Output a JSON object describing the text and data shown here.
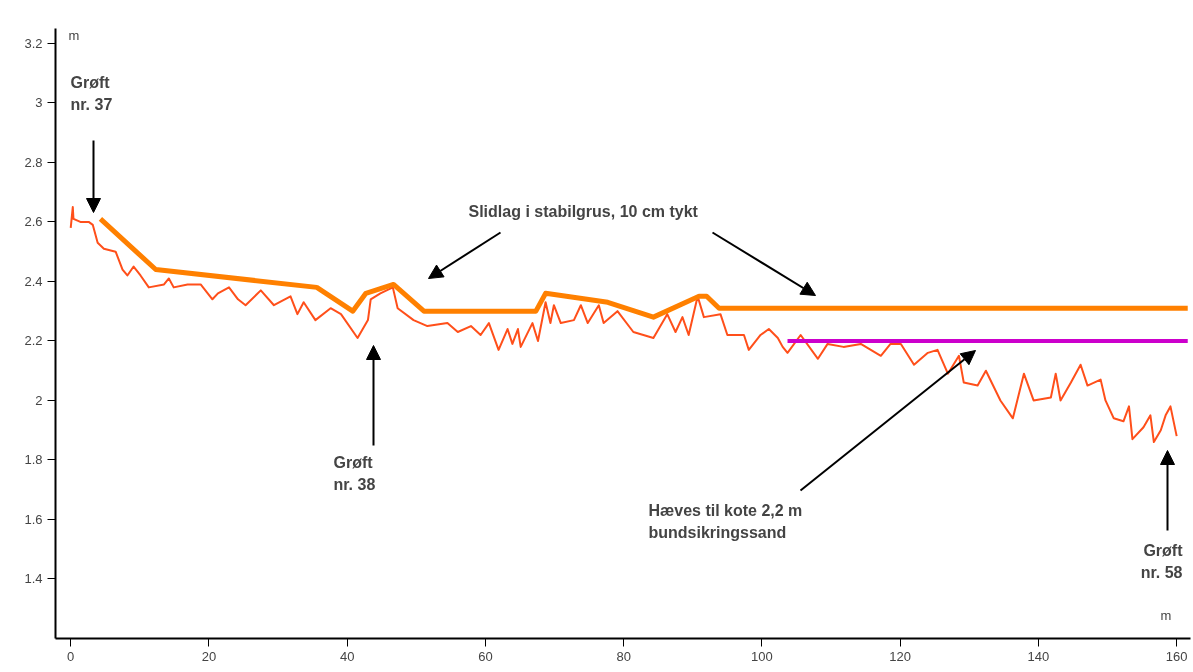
{
  "chart_data": {
    "type": "line",
    "xlabel": "m",
    "ylabel": "m",
    "xlim": [
      -2.2,
      162
    ],
    "ylim": [
      1.2,
      3.25
    ],
    "xticks": [
      0,
      20,
      40,
      60,
      80,
      100,
      120,
      140,
      160
    ],
    "yticks": [
      1.4,
      1.6,
      1.8,
      2,
      2.2,
      2.4,
      2.6,
      2.8,
      3,
      3.2
    ],
    "grid": false,
    "line_style": "solid",
    "series": [
      {
        "color": "#ff4f1a",
        "x": [
          0,
          0.3,
          0.4,
          1.4,
          2.6,
          3.2,
          3.9,
          4.8,
          6.5,
          7.5,
          8.2,
          9.1,
          10.1,
          11.3,
          13.5,
          14.2,
          14.9,
          16.9,
          18.8,
          20.5,
          21.3,
          22.9,
          24.2,
          25.3,
          27.5,
          29.4,
          31.8,
          32.8,
          33.7,
          35.4,
          37.6,
          39.1,
          41.5,
          43.0,
          43.4,
          44.8,
          46.6,
          47.3,
          49.6,
          51.6,
          54.5,
          56.0,
          57.9,
          59.3,
          60.5,
          61.9,
          63.2,
          63.9,
          64.7,
          65.1,
          66.8,
          67.6,
          68.7,
          69.4,
          69.9,
          70.9,
          72.8,
          73.8,
          74.8,
          76.4,
          77.1,
          79.1,
          81.4,
          84.3,
          86.3,
          87.5,
          88.5,
          89.4,
          90.7,
          91.6,
          94.0,
          95.0,
          97.4,
          98.1,
          99.8,
          101.0,
          102.3,
          103.0,
          103.7,
          105.6,
          108.1,
          109.5,
          111.8,
          114.3,
          117.2,
          118.6,
          120.1,
          122.0,
          124.0,
          125.4,
          126.9,
          128.5,
          129.2,
          131.2,
          132.4,
          134.5,
          136.3,
          137.9,
          139.3,
          141.8,
          142.5,
          143.2,
          144.7,
          146.1,
          147.1,
          149.0,
          149.7,
          150.9,
          152.3,
          153.1,
          153.6,
          155.2,
          156.2,
          156.7,
          157.7,
          158.4,
          159.1,
          160.0
        ],
        "values": [
          2.58,
          2.65,
          2.61,
          2.6,
          2.6,
          2.59,
          2.53,
          2.51,
          2.5,
          2.44,
          2.42,
          2.45,
          2.42,
          2.38,
          2.39,
          2.41,
          2.38,
          2.39,
          2.39,
          2.34,
          2.36,
          2.38,
          2.34,
          2.32,
          2.37,
          2.32,
          2.35,
          2.29,
          2.33,
          2.27,
          2.31,
          2.29,
          2.21,
          2.27,
          2.34,
          2.36,
          2.38,
          2.31,
          2.27,
          2.25,
          2.26,
          2.23,
          2.25,
          2.22,
          2.26,
          2.17,
          2.24,
          2.19,
          2.24,
          2.18,
          2.26,
          2.2,
          2.33,
          2.26,
          2.32,
          2.26,
          2.27,
          2.32,
          2.26,
          2.32,
          2.26,
          2.3,
          2.23,
          2.21,
          2.29,
          2.23,
          2.28,
          2.22,
          2.35,
          2.28,
          2.29,
          2.22,
          2.22,
          2.17,
          2.22,
          2.24,
          2.21,
          2.18,
          2.16,
          2.22,
          2.14,
          2.19,
          2.18,
          2.19,
          2.15,
          2.19,
          2.19,
          2.12,
          2.16,
          2.17,
          2.09,
          2.15,
          2.06,
          2.05,
          2.1,
          2.0,
          1.94,
          2.09,
          2.0,
          2.01,
          2.09,
          2.0,
          2.06,
          2.12,
          2.05,
          2.07,
          2.0,
          1.94,
          1.93,
          1.98,
          1.87,
          1.91,
          1.95,
          1.86,
          1.9,
          1.95,
          1.98,
          1.88
        ]
      },
      {
        "color": "#ff8000",
        "x": [
          4.3,
          12.3,
          35.6,
          40.8,
          42.7,
          46.7,
          51.1,
          67.3,
          68.7,
          77.7,
          84.3,
          90.9,
          92.0,
          93.8,
          161.6
        ],
        "values": [
          2.61,
          2.44,
          2.38,
          2.3,
          2.36,
          2.39,
          2.3,
          2.3,
          2.36,
          2.33,
          2.28,
          2.35,
          2.35,
          2.31,
          2.31
        ]
      },
      {
        "color": "#cc00cc",
        "x": [
          103.7,
          161.6
        ],
        "values": [
          2.2,
          2.2
        ]
      }
    ],
    "annotations": [
      "Grøft\nnr. 37",
      "Grøft\nnr. 38",
      "Slidlag i stabilgrus, 10 cm tykt",
      "Hæves til kote 2,2 m\nbundsikringssand",
      "Grøft\nnr. 58"
    ]
  }
}
